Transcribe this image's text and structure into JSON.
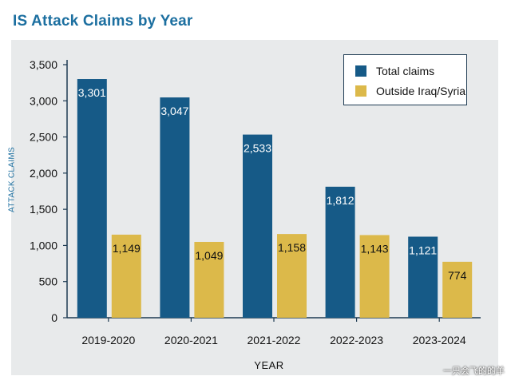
{
  "title": "IS Attack Claims by Year",
  "watermark": "一只会飞的的羊",
  "colors": {
    "total": "#165a87",
    "outside": "#dcb94a",
    "axis": "#1d3a52",
    "title": "#1c6fa0"
  },
  "chart_data": {
    "type": "bar",
    "title": "IS Attack Claims by Year",
    "xlabel": "YEAR",
    "ylabel": "ATTACK CLAIMS",
    "ylim": [
      0,
      3500
    ],
    "yticks": [
      "0",
      "500",
      "1,000",
      "1,500",
      "2,000",
      "2,500",
      "3,000",
      "3,500"
    ],
    "ytick_values": [
      0,
      500,
      1000,
      1500,
      2000,
      2500,
      3000,
      3500
    ],
    "categories": [
      "2019-2020",
      "2020-2021",
      "2021-2022",
      "2022-2023",
      "2023-2024"
    ],
    "series": [
      {
        "name": "Total claims",
        "values": [
          3301,
          3047,
          2533,
          1812,
          1121
        ],
        "labels": [
          "3,301",
          "3,047",
          "2,533",
          "1,812",
          "1,121"
        ]
      },
      {
        "name": "Outside Iraq/Syria",
        "values": [
          1149,
          1049,
          1158,
          1143,
          774
        ],
        "labels": [
          "1,149",
          "1,049",
          "1,158",
          "1,143",
          "774"
        ]
      }
    ],
    "legend": "top-right",
    "grid": false
  }
}
